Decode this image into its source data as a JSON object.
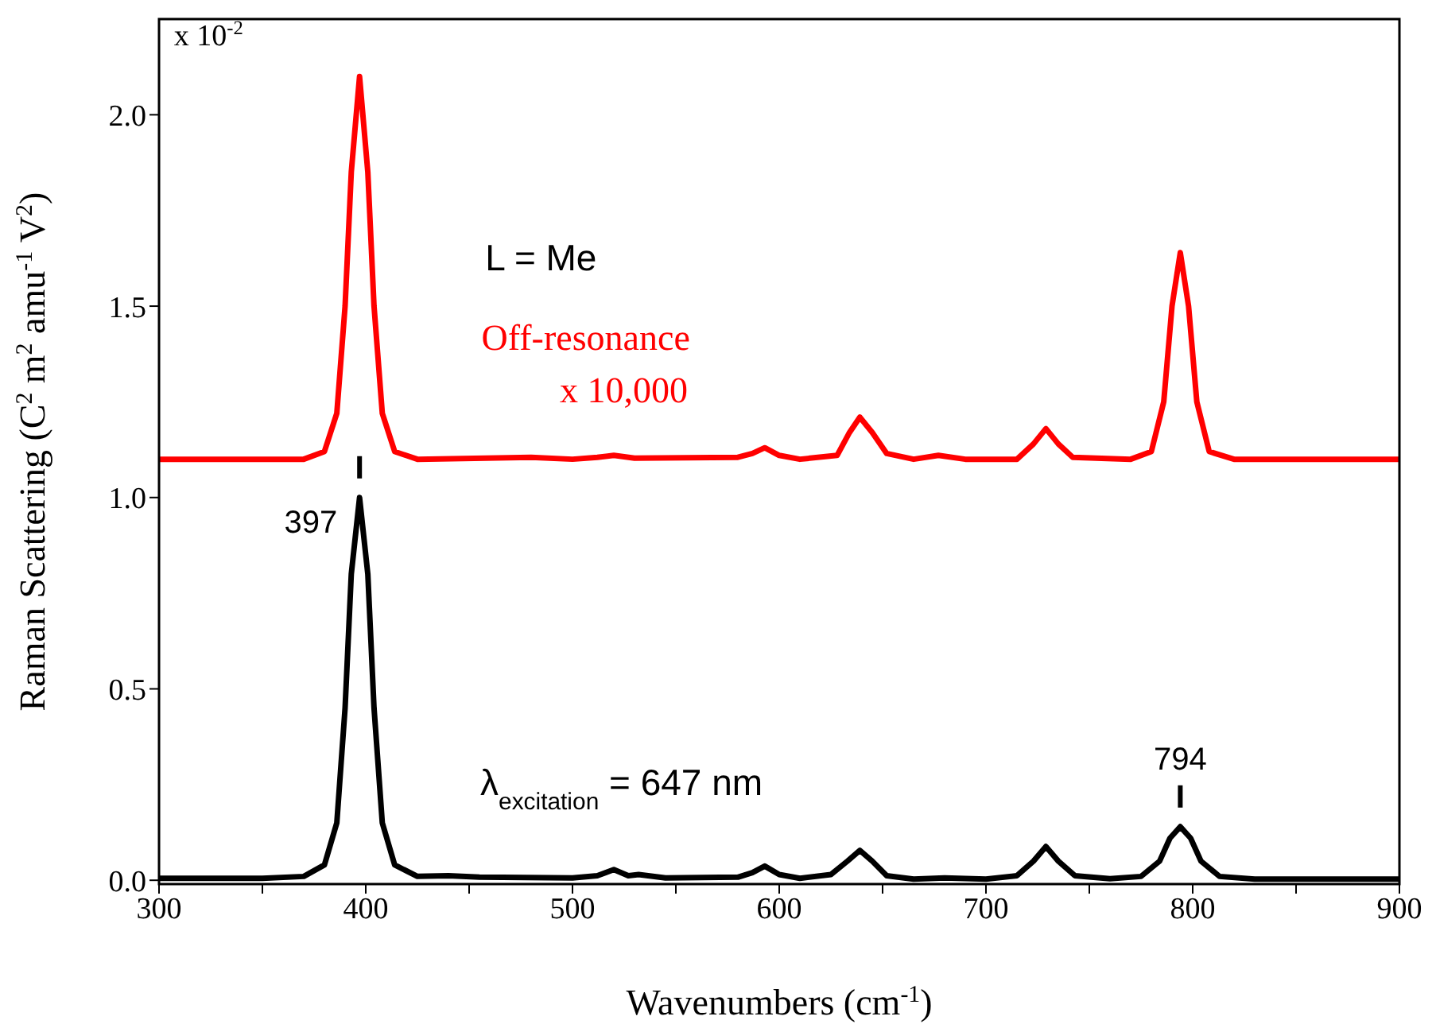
{
  "chart_data": {
    "type": "line",
    "xlabel": "Wavenumbers (cm$^{-1}$)",
    "ylabel": "Raman Scattering (C$^{2}$ m$^{2}$ amu$^{-1}$ V$^{2}$)",
    "annotations": [
      "x 10$^{-2}$",
      "L = Me",
      "Off-resonance",
      "x 10,000",
      "λ$_{excitation}$ = 647 nm",
      {
        "text": "397",
        "x": 397,
        "y": 1.0
      },
      {
        "text": "794",
        "x": 794,
        "y": 0.14
      }
    ],
    "series": [
      {
        "color": "#ff0000",
        "x": [
          300,
          370,
          380,
          386,
          390,
          393,
          397,
          401,
          404,
          408,
          414,
          425,
          480,
          500,
          512,
          520,
          530,
          580,
          587,
          593,
          600,
          610,
          628,
          634,
          639,
          645,
          652,
          665,
          677,
          690,
          715,
          723,
          729,
          735,
          742,
          770,
          780,
          786,
          790,
          794,
          798,
          802,
          808,
          820,
          900
        ],
        "values": [
          1.1,
          1.1,
          1.12,
          1.22,
          1.5,
          1.85,
          2.1,
          1.85,
          1.5,
          1.22,
          1.12,
          1.1,
          1.105,
          1.1,
          1.105,
          1.11,
          1.103,
          1.105,
          1.115,
          1.13,
          1.11,
          1.1,
          1.11,
          1.17,
          1.21,
          1.17,
          1.115,
          1.1,
          1.11,
          1.1,
          1.1,
          1.14,
          1.18,
          1.14,
          1.105,
          1.1,
          1.12,
          1.25,
          1.5,
          1.64,
          1.5,
          1.25,
          1.12,
          1.1,
          1.1
        ]
      },
      {
        "color": "#000000",
        "x": [
          300,
          350,
          370,
          380,
          386,
          390,
          393,
          397,
          401,
          404,
          408,
          414,
          425,
          440,
          455,
          500,
          512,
          520,
          527,
          532,
          545,
          580,
          587,
          593,
          600,
          610,
          625,
          633,
          639,
          645,
          652,
          665,
          680,
          700,
          715,
          723,
          729,
          735,
          743,
          760,
          775,
          784,
          789,
          794,
          799,
          804,
          813,
          830,
          900
        ],
        "values": [
          0.005,
          0.005,
          0.01,
          0.04,
          0.15,
          0.45,
          0.8,
          1.0,
          0.8,
          0.45,
          0.15,
          0.04,
          0.01,
          0.012,
          0.008,
          0.006,
          0.012,
          0.028,
          0.012,
          0.015,
          0.006,
          0.008,
          0.02,
          0.037,
          0.015,
          0.005,
          0.015,
          0.05,
          0.078,
          0.05,
          0.012,
          0.003,
          0.006,
          0.003,
          0.012,
          0.05,
          0.088,
          0.05,
          0.012,
          0.004,
          0.01,
          0.05,
          0.11,
          0.14,
          0.11,
          0.05,
          0.01,
          0.003,
          0.003
        ]
      }
    ],
    "xlim": [
      300,
      900
    ],
    "xticks": [
      300,
      {
        "value": 350,
        "label": null
      },
      400,
      {
        "value": 450,
        "label": null
      },
      500,
      {
        "value": 550,
        "label": null
      },
      600,
      {
        "value": 650,
        "label": null
      },
      700,
      {
        "value": 750,
        "label": null
      },
      800,
      {
        "value": 850,
        "label": null
      },
      900
    ],
    "ylim": [
      -0.01,
      2.25
    ],
    "yticks": [
      {
        "value": 0,
        "label": "0.0"
      },
      {
        "value": 0.5,
        "label": "0.5"
      },
      {
        "value": 1,
        "label": "1.0"
      },
      {
        "value": 1.5,
        "label": "1.5"
      },
      {
        "value": 2,
        "label": "2.0"
      }
    ],
    "grid": false,
    "legend": false,
    "marker": "none",
    "line_style": "solid"
  }
}
